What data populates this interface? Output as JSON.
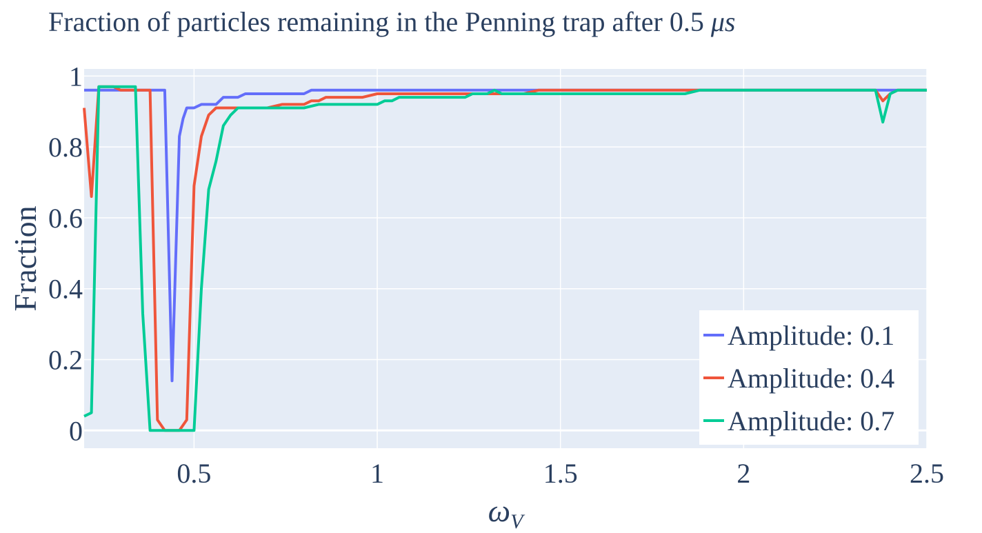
{
  "chart_data": {
    "type": "line",
    "title": "Fraction of particles remaining in the Penning trap after 0.5 μs",
    "title_main": "Fraction of particles remaining in the Penning trap after 0.5 ",
    "title_unit": "μs",
    "xlabel": "ω",
    "xlabel_sub": "V",
    "ylabel": "Fraction",
    "xlim": [
      0.2,
      2.5
    ],
    "ylim": [
      -0.05,
      1.02
    ],
    "x_ticks": [
      0.5,
      1,
      1.5,
      2,
      2.5
    ],
    "x_tick_labels": [
      "0.5",
      "1",
      "1.5",
      "2",
      "2.5"
    ],
    "y_ticks": [
      0,
      0.2,
      0.4,
      0.6,
      0.8,
      1
    ],
    "y_tick_labels": [
      "0",
      "0.2",
      "0.4",
      "0.6",
      "0.8",
      "1"
    ],
    "grid": true,
    "plot_background": "#e5ecf6",
    "gridline_color": "#ffffff",
    "legend_position": "bottom-right",
    "series": [
      {
        "name": "Amplitude: 0.1",
        "color": "#636efa",
        "x": [
          0.2,
          0.3,
          0.36,
          0.4,
          0.42,
          0.44,
          0.46,
          0.47,
          0.48,
          0.49,
          0.5,
          0.52,
          0.54,
          0.56,
          0.58,
          0.6,
          0.62,
          0.64,
          0.66,
          0.7,
          0.8,
          0.82,
          0.9,
          1.0,
          1.2,
          1.4,
          1.44,
          1.6,
          1.8,
          2.0,
          2.2,
          2.35,
          2.4,
          2.5
        ],
        "y": [
          0.96,
          0.96,
          0.96,
          0.96,
          0.96,
          0.14,
          0.83,
          0.88,
          0.91,
          0.91,
          0.91,
          0.92,
          0.92,
          0.92,
          0.94,
          0.94,
          0.94,
          0.95,
          0.95,
          0.95,
          0.95,
          0.96,
          0.96,
          0.96,
          0.96,
          0.96,
          0.96,
          0.96,
          0.96,
          0.96,
          0.96,
          0.96,
          0.96,
          0.96
        ]
      },
      {
        "name": "Amplitude: 0.4",
        "color": "#ef553b",
        "x": [
          0.2,
          0.22,
          0.24,
          0.26,
          0.28,
          0.3,
          0.32,
          0.34,
          0.36,
          0.38,
          0.4,
          0.42,
          0.44,
          0.46,
          0.48,
          0.5,
          0.52,
          0.54,
          0.56,
          0.58,
          0.6,
          0.64,
          0.7,
          0.74,
          0.8,
          0.82,
          0.84,
          0.86,
          0.9,
          0.96,
          1.0,
          1.1,
          1.2,
          1.3,
          1.4,
          1.44,
          1.6,
          1.8,
          2.0,
          2.2,
          2.36,
          2.38,
          2.4,
          2.42,
          2.5
        ],
        "y": [
          0.91,
          0.66,
          0.97,
          0.97,
          0.97,
          0.96,
          0.96,
          0.96,
          0.96,
          0.96,
          0.03,
          0.0,
          0.0,
          0.0,
          0.03,
          0.69,
          0.83,
          0.89,
          0.91,
          0.91,
          0.91,
          0.91,
          0.91,
          0.92,
          0.92,
          0.93,
          0.93,
          0.94,
          0.94,
          0.94,
          0.95,
          0.95,
          0.95,
          0.95,
          0.95,
          0.96,
          0.96,
          0.96,
          0.96,
          0.96,
          0.96,
          0.93,
          0.95,
          0.96,
          0.96
        ]
      },
      {
        "name": "Amplitude: 0.7",
        "color": "#00cc96",
        "x": [
          0.2,
          0.22,
          0.24,
          0.26,
          0.28,
          0.3,
          0.32,
          0.34,
          0.36,
          0.38,
          0.4,
          0.42,
          0.44,
          0.46,
          0.48,
          0.5,
          0.52,
          0.54,
          0.56,
          0.58,
          0.6,
          0.62,
          0.64,
          0.7,
          0.8,
          0.84,
          0.9,
          0.96,
          1.0,
          1.02,
          1.04,
          1.06,
          1.1,
          1.2,
          1.24,
          1.26,
          1.3,
          1.32,
          1.34,
          1.4,
          1.6,
          1.8,
          1.84,
          1.88,
          2.0,
          2.2,
          2.36,
          2.38,
          2.4,
          2.42,
          2.5
        ],
        "y": [
          0.04,
          0.05,
          0.97,
          0.97,
          0.97,
          0.97,
          0.97,
          0.97,
          0.33,
          0.0,
          0.0,
          0.0,
          0.0,
          0.0,
          0.0,
          0.0,
          0.4,
          0.68,
          0.76,
          0.86,
          0.89,
          0.91,
          0.91,
          0.91,
          0.91,
          0.92,
          0.92,
          0.92,
          0.92,
          0.93,
          0.93,
          0.94,
          0.94,
          0.94,
          0.94,
          0.95,
          0.95,
          0.96,
          0.95,
          0.95,
          0.95,
          0.95,
          0.95,
          0.96,
          0.96,
          0.96,
          0.96,
          0.87,
          0.95,
          0.96,
          0.96
        ]
      }
    ]
  }
}
